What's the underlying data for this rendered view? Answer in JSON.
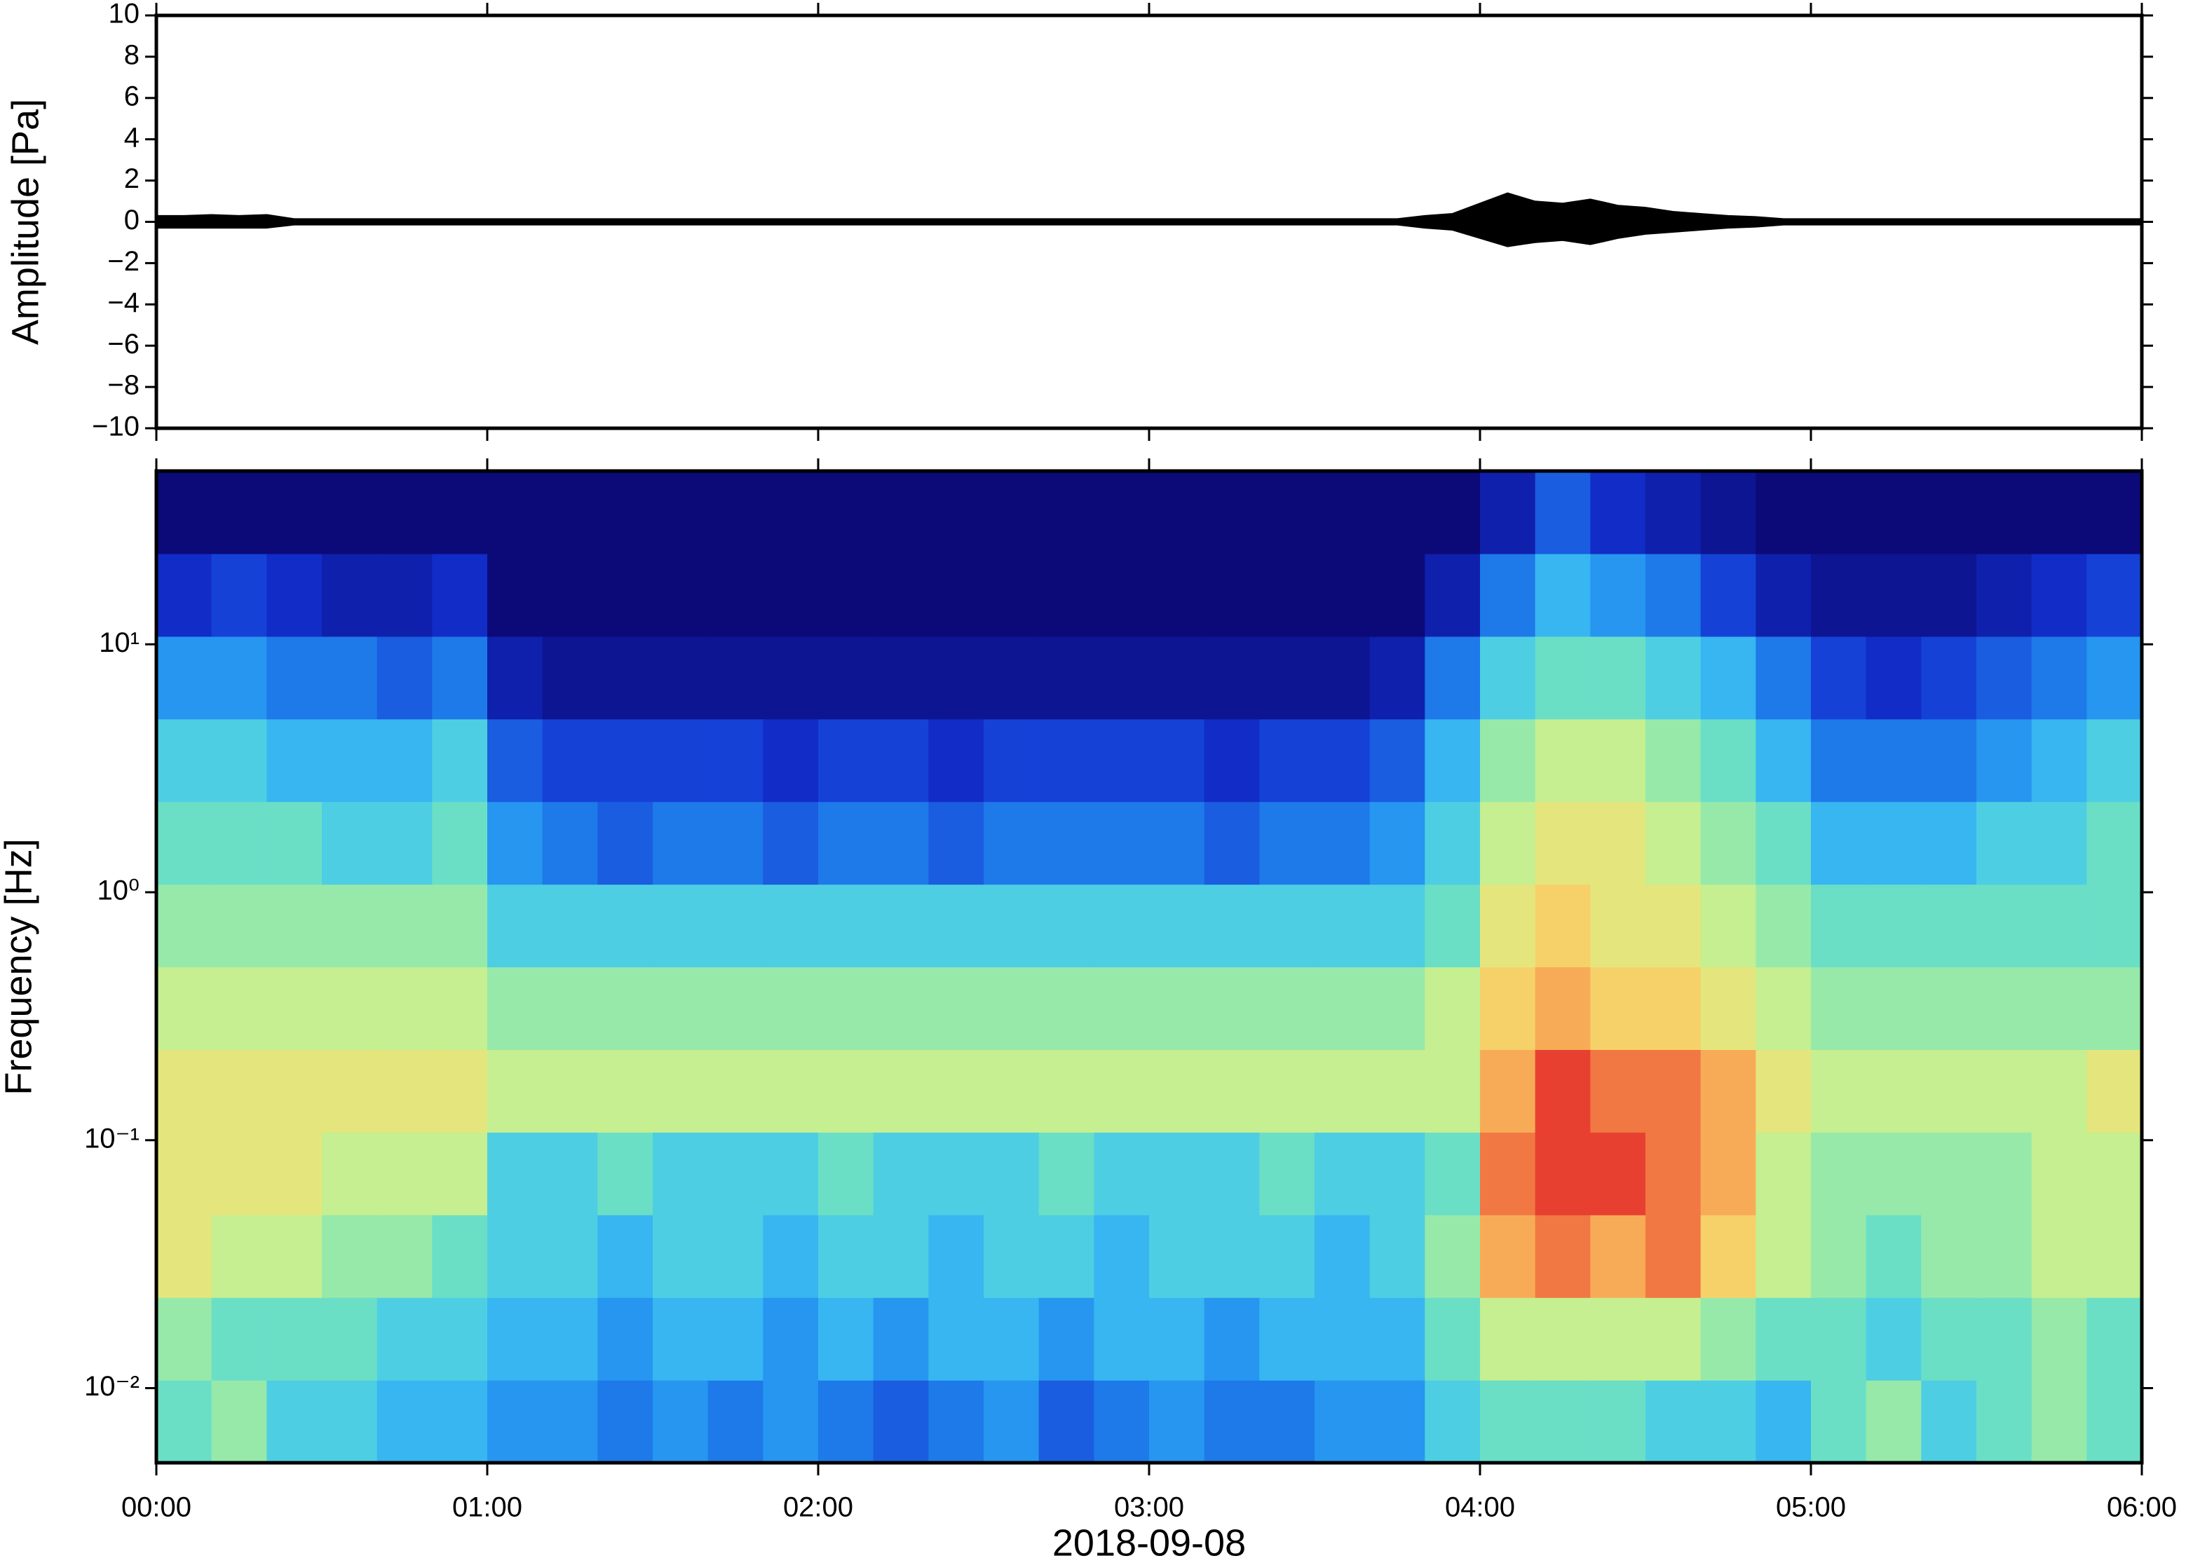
{
  "chart_data": [
    {
      "type": "band",
      "ylabel": "Amplitude [Pa]",
      "color": "#000000",
      "x": [
        0,
        5,
        10,
        15,
        20,
        25,
        30,
        35,
        40,
        45,
        50,
        55,
        60,
        65,
        70,
        75,
        80,
        85,
        90,
        95,
        100,
        105,
        110,
        115,
        120,
        125,
        130,
        135,
        140,
        145,
        150,
        155,
        160,
        165,
        170,
        175,
        180,
        185,
        190,
        195,
        200,
        205,
        210,
        215,
        220,
        225,
        230,
        235,
        240,
        245,
        250,
        255,
        260,
        265,
        270,
        275,
        280,
        285,
        290,
        295,
        300,
        305,
        310,
        315,
        320,
        325,
        330,
        335,
        340,
        345,
        350,
        355,
        360
      ],
      "upper": [
        0.3,
        0.3,
        0.35,
        0.3,
        0.35,
        0.15,
        0.15,
        0.15,
        0.15,
        0.15,
        0.15,
        0.15,
        0.15,
        0.15,
        0.15,
        0.15,
        0.15,
        0.15,
        0.15,
        0.15,
        0.15,
        0.15,
        0.15,
        0.15,
        0.15,
        0.15,
        0.15,
        0.15,
        0.15,
        0.15,
        0.15,
        0.15,
        0.15,
        0.15,
        0.15,
        0.15,
        0.15,
        0.15,
        0.15,
        0.15,
        0.15,
        0.15,
        0.15,
        0.15,
        0.15,
        0.15,
        0.3,
        0.4,
        0.9,
        1.4,
        1.0,
        0.9,
        1.1,
        0.8,
        0.7,
        0.5,
        0.4,
        0.3,
        0.25,
        0.15,
        0.15,
        0.15,
        0.15,
        0.15,
        0.15,
        0.15,
        0.15,
        0.15,
        0.15,
        0.15,
        0.15,
        0.15,
        0.15
      ],
      "lower": [
        -0.3,
        -0.3,
        -0.3,
        -0.3,
        -0.3,
        -0.15,
        -0.15,
        -0.15,
        -0.15,
        -0.15,
        -0.15,
        -0.15,
        -0.15,
        -0.15,
        -0.15,
        -0.15,
        -0.15,
        -0.15,
        -0.15,
        -0.15,
        -0.15,
        -0.15,
        -0.15,
        -0.15,
        -0.15,
        -0.15,
        -0.15,
        -0.15,
        -0.15,
        -0.15,
        -0.15,
        -0.15,
        -0.15,
        -0.15,
        -0.15,
        -0.15,
        -0.15,
        -0.15,
        -0.15,
        -0.15,
        -0.15,
        -0.15,
        -0.15,
        -0.15,
        -0.15,
        -0.15,
        -0.3,
        -0.4,
        -0.8,
        -1.2,
        -1.0,
        -0.9,
        -1.1,
        -0.8,
        -0.6,
        -0.5,
        -0.4,
        -0.3,
        -0.25,
        -0.15,
        -0.15,
        -0.15,
        -0.15,
        -0.15,
        -0.15,
        -0.15,
        -0.15,
        -0.15,
        -0.15,
        -0.15,
        -0.15,
        -0.15,
        -0.15
      ],
      "xlim": [
        0,
        360
      ],
      "xticks": [
        {
          "value": 0,
          "label": "00:00"
        },
        {
          "value": 60,
          "label": "01:00"
        },
        {
          "value": 120,
          "label": "02:00"
        },
        {
          "value": 180,
          "label": "03:00"
        },
        {
          "value": 240,
          "label": "04:00"
        },
        {
          "value": 300,
          "label": "05:00"
        },
        {
          "value": 360,
          "label": "06:00"
        }
      ],
      "ylim": [
        -10,
        10
      ],
      "yticks": [
        {
          "value": -10,
          "label": "−10"
        },
        {
          "value": -8,
          "label": "−8"
        },
        {
          "value": -6,
          "label": "−6"
        },
        {
          "value": -4,
          "label": "−4"
        },
        {
          "value": -2,
          "label": "−2"
        },
        0,
        2,
        4,
        6,
        8,
        10
      ]
    },
    {
      "type": "heatmap",
      "ylabel": "Frequency [Hz]",
      "xlabel": "2018-09-08",
      "colormap": "jet",
      "ylog": true,
      "xbins": [
        0,
        10,
        20,
        30,
        40,
        50,
        60,
        70,
        80,
        90,
        100,
        110,
        120,
        130,
        140,
        150,
        160,
        170,
        180,
        190,
        200,
        210,
        220,
        230,
        240,
        250,
        260,
        270,
        280,
        290,
        300,
        310,
        320,
        330,
        340,
        350,
        360
      ],
      "ybins": [
        0.005,
        0.01077,
        0.02321,
        0.05,
        0.1077,
        0.2321,
        0.5,
        1.077,
        2.321,
        5,
        10.77,
        23.21,
        50
      ],
      "z": [
        [
          5,
          5.5,
          4.5,
          4.5,
          4,
          4,
          3.5,
          3.5,
          3,
          3.5,
          3,
          3.5,
          3,
          2.5,
          3,
          3.5,
          2.5,
          3,
          3.5,
          3,
          3,
          3.5,
          3.5,
          4.5,
          5,
          5,
          5,
          4.5,
          4.5,
          4,
          5,
          5.5,
          4.5,
          5,
          5.5,
          5
        ],
        [
          5.5,
          5,
          5,
          5,
          4.5,
          4.5,
          4,
          4,
          3.5,
          4,
          4,
          3.5,
          4,
          3.5,
          4,
          4,
          3.5,
          4,
          4,
          3.5,
          4,
          4,
          4,
          5,
          6,
          6,
          6,
          6,
          5.5,
          5,
          5,
          4.5,
          5,
          5,
          5.5,
          5
        ],
        [
          6.5,
          6,
          6,
          5.5,
          5.5,
          5,
          4.5,
          4.5,
          4,
          4.5,
          4.5,
          4,
          4.5,
          4.5,
          4,
          4.5,
          4.5,
          4,
          4.5,
          4.5,
          4.5,
          4,
          4.5,
          5.5,
          7.5,
          8,
          7.5,
          8,
          7,
          6,
          5.5,
          5,
          5.5,
          5.5,
          6,
          6
        ],
        [
          6.5,
          6.5,
          6.5,
          6,
          6,
          6,
          4.5,
          4.5,
          5,
          4.5,
          4.5,
          4.5,
          5,
          4.5,
          4.5,
          4.5,
          5,
          4.5,
          4.5,
          4.5,
          5,
          4.5,
          4.5,
          5,
          8,
          8.5,
          8.5,
          8,
          7.5,
          6,
          5.5,
          5.5,
          5.5,
          5.5,
          6,
          6
        ],
        [
          6.5,
          6.5,
          6.5,
          6.5,
          6.5,
          6.5,
          6,
          6,
          6,
          6,
          6,
          6,
          6,
          6,
          6,
          6,
          6,
          6,
          6,
          6,
          6,
          6,
          6,
          6,
          7.5,
          8.5,
          8,
          8,
          7.5,
          6.5,
          6,
          6,
          6,
          6,
          6,
          6.5
        ],
        [
          6,
          6,
          6,
          6,
          6,
          6,
          5.5,
          5.5,
          5.5,
          5.5,
          5.5,
          5.5,
          5.5,
          5.5,
          5.5,
          5.5,
          5.5,
          5.5,
          5.5,
          5.5,
          5.5,
          5.5,
          5.5,
          6,
          7,
          7.5,
          7,
          7,
          6.5,
          6,
          5.5,
          5.5,
          5.5,
          5.5,
          5.5,
          5.5
        ],
        [
          5.5,
          5.5,
          5.5,
          5.5,
          5.5,
          5.5,
          4.5,
          4.5,
          4.5,
          4.5,
          4.5,
          4.5,
          4.5,
          4.5,
          4.5,
          4.5,
          4.5,
          4.5,
          4.5,
          4.5,
          4.5,
          4.5,
          4.5,
          5,
          6.5,
          7,
          6.5,
          6.5,
          6,
          5.5,
          5,
          5,
          5,
          5,
          5,
          5
        ],
        [
          5,
          5,
          5,
          4.5,
          4.5,
          5,
          3.5,
          3,
          2.5,
          3,
          3,
          2.5,
          3,
          3,
          2.5,
          3,
          3,
          3,
          3,
          2.5,
          3,
          3,
          3.5,
          4.5,
          6,
          6.5,
          6.5,
          6,
          5.5,
          5,
          4,
          4,
          4,
          4.5,
          4.5,
          5
        ],
        [
          4.5,
          4.5,
          4,
          4,
          4,
          4.5,
          2.5,
          2,
          2,
          2,
          2,
          1.5,
          2,
          2,
          1.5,
          2,
          2,
          2,
          2,
          1.5,
          2,
          2,
          2.5,
          4,
          5.5,
          6,
          6,
          5.5,
          5,
          4,
          3,
          3,
          3,
          3.5,
          4,
          4.5
        ],
        [
          3.5,
          3.5,
          3,
          3,
          2.5,
          3,
          1,
          0.5,
          0.5,
          0.5,
          0.5,
          0.5,
          0.5,
          0.5,
          0.5,
          0.5,
          0.5,
          0.5,
          0.5,
          0.5,
          0.5,
          0.5,
          1,
          3,
          4.5,
          5,
          5,
          4.5,
          4,
          3,
          2,
          1.5,
          2,
          2.5,
          3,
          3.5
        ],
        [
          1.5,
          2,
          1.5,
          1,
          1,
          1.5,
          0,
          0,
          0,
          0,
          0,
          0,
          0,
          0,
          0,
          0,
          0,
          0,
          0,
          0,
          0,
          0,
          0,
          1,
          3,
          4,
          3.5,
          3,
          2,
          1,
          0.5,
          0.5,
          0.5,
          1,
          1.5,
          2
        ],
        [
          0,
          0,
          0,
          0,
          0,
          0,
          0,
          0,
          0,
          0,
          0,
          0,
          0,
          0,
          0,
          0,
          0,
          0,
          0,
          0,
          0,
          0,
          0,
          0,
          1,
          2.5,
          1.5,
          1,
          0.5,
          0,
          0,
          0,
          0,
          0,
          0,
          0
        ]
      ],
      "xlim": [
        0,
        360
      ],
      "xticks": [
        {
          "value": 0,
          "label": "00:00"
        },
        {
          "value": 60,
          "label": "01:00"
        },
        {
          "value": 120,
          "label": "02:00"
        },
        {
          "value": 180,
          "label": "03:00"
        },
        {
          "value": 240,
          "label": "04:00"
        },
        {
          "value": 300,
          "label": "05:00"
        },
        {
          "value": 360,
          "label": "06:00"
        }
      ],
      "ylim": [
        0.005,
        50
      ],
      "yticks": [
        {
          "value": 0.01,
          "label": "10⁻²"
        },
        {
          "value": 0.1,
          "label": "10⁻¹"
        },
        {
          "value": 1,
          "label": "10⁰"
        },
        {
          "value": 10,
          "label": "10¹"
        }
      ]
    }
  ]
}
